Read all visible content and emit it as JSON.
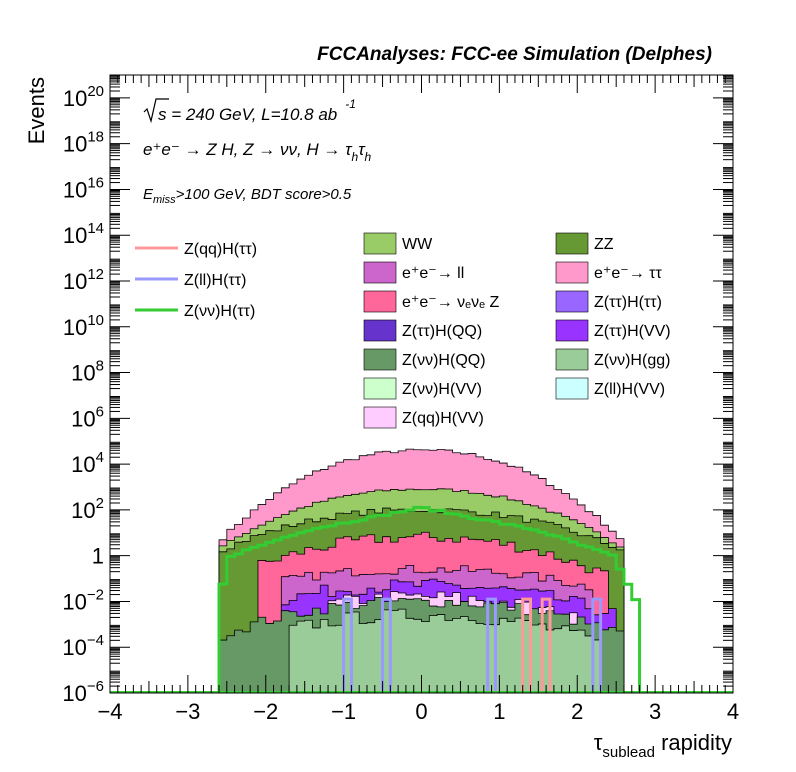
{
  "header": {
    "title": "FCCAnalyses: FCC-ee Simulation (Delphes)"
  },
  "annotations": {
    "energy_prefix": "s",
    "energy": " = 240 GeV, L=10.8 ab",
    "lumi_exp": "-1",
    "process": "e⁺e⁻ → Z H, Z → νν, H → τ",
    "process_sub": "h",
    "process_tail": "τ",
    "process_sub2": "h",
    "cut_prefix": "E",
    "cut_sub": "miss",
    "cut_text": ">100 GeV, BDT score>0.5"
  },
  "axes": {
    "ylabel": "Events",
    "xlabel_main": "τ",
    "xlabel_sub": "sublead",
    "xlabel_tail": " rapidity"
  },
  "colors": {
    "WW": "#99cc66",
    "ZZ": "#669933",
    "ee_ll": "#cc66cc",
    "ee_tautau": "#ff99cc",
    "ee_nunuZ": "#ff6699",
    "Ztt_Htt": "#9966ff",
    "Ztt_HQQ": "#6633cc",
    "Ztt_HVV": "#9933ff",
    "Znn_HQQ": "#669966",
    "Znn_Hgg": "#99cc99",
    "Znn_HVV": "#ccffcc",
    "Zll_HVV": "#ccffff",
    "Zqq_HVV": "#ffccff",
    "sig_qq": "#ff9999",
    "sig_ll": "#9999ff",
    "sig_nn": "#33cc33"
  },
  "chart_data": {
    "type": "histogram-stack",
    "title": "FCCAnalyses: FCC-ee Simulation (Delphes)",
    "xlabel": "τ_sublead rapidity",
    "ylabel": "Events",
    "xlim": [
      -4,
      4
    ],
    "ylim": [
      1e-06,
      1e+21
    ],
    "y_scale": "log",
    "x_ticks": [
      "−4",
      "−3",
      "−2",
      "−1",
      "0",
      "1",
      "2",
      "3",
      "4"
    ],
    "y_ticks": [
      {
        "base": "10",
        "exp": "−6",
        "value": 1e-06
      },
      {
        "base": "10",
        "exp": "−4",
        "value": 0.0001
      },
      {
        "base": "10",
        "exp": "−2",
        "value": 0.01
      },
      {
        "base": "1",
        "exp": "",
        "value": 1
      },
      {
        "base": "10",
        "exp": "2",
        "value": 100.0
      },
      {
        "base": "10",
        "exp": "4",
        "value": 10000.0
      },
      {
        "base": "10",
        "exp": "6",
        "value": 1000000.0
      },
      {
        "base": "10",
        "exp": "8",
        "value": 100000000.0
      },
      {
        "base": "10",
        "exp": "10",
        "value": 10000000000.0
      },
      {
        "base": "10",
        "exp": "12",
        "value": 1000000000000.0
      },
      {
        "base": "10",
        "exp": "14",
        "value": 100000000000000.0
      },
      {
        "base": "10",
        "exp": "16",
        "value": 1e+16
      },
      {
        "base": "10",
        "exp": "18",
        "value": 1e+18
      },
      {
        "base": "10",
        "exp": "20",
        "value": 1e+20
      }
    ],
    "binning": {
      "range": [
        -4,
        4
      ],
      "bins": 80
    },
    "stack_approx_log10_top": [
      {
        "x": -2.6,
        "ZZ": 0.5,
        "WW": 0.5,
        "ee_tautau": 0.5
      },
      {
        "x": -2.0,
        "ZZ": 1.3,
        "WW": 2.2,
        "ee_tautau": 3.1
      },
      {
        "x": -1.0,
        "ZZ": 1.8,
        "WW": 2.5,
        "ee_tautau": 4.5
      },
      {
        "x": 0.0,
        "ZZ": 2.0,
        "WW": 2.7,
        "ee_tautau": 4.4
      },
      {
        "x": 1.0,
        "ZZ": 1.8,
        "WW": 2.5,
        "ee_tautau": 4.5
      },
      {
        "x": 2.0,
        "ZZ": 1.3,
        "WW": 2.2,
        "ee_tautau": 3.1
      },
      {
        "x": 2.6,
        "ZZ": 0.5,
        "WW": 0.5,
        "ee_tautau": 0.5
      }
    ],
    "signal_nunu_approx_log10": [
      {
        "x": -2.6,
        "y": -1.9
      },
      {
        "x": -2.45,
        "y": 0.0
      },
      {
        "x": -1.5,
        "y": 1.1
      },
      {
        "x": 0.0,
        "y": 2.1
      },
      {
        "x": 1.5,
        "y": 1.1
      },
      {
        "x": 2.45,
        "y": 0.0
      },
      {
        "x": 2.75,
        "y": -1.9
      }
    ],
    "legend": {
      "left": [
        {
          "label": "Z(qq)H(ττ)",
          "key": "sig_qq",
          "style": "line"
        },
        {
          "label": "Z(ll)H(ττ)",
          "key": "sig_ll",
          "style": "line"
        },
        {
          "label": "Z(νν)H(ττ)",
          "key": "sig_nn",
          "style": "line"
        }
      ],
      "col1": [
        {
          "label": "WW",
          "key": "WW"
        },
        {
          "label": "e⁺e⁻→ ll",
          "key": "ee_ll"
        },
        {
          "label": "e⁺e⁻→ νₑνₑ Z",
          "key": "ee_nunuZ"
        },
        {
          "label": "Z(ττ)H(QQ)",
          "key": "Ztt_HQQ"
        },
        {
          "label": "Z(νν)H(QQ)",
          "key": "Znn_HQQ"
        },
        {
          "label": "Z(νν)H(VV)",
          "key": "Znn_HVV"
        },
        {
          "label": "Z(qq)H(VV)",
          "key": "Zqq_HVV"
        }
      ],
      "col2": [
        {
          "label": "ZZ",
          "key": "ZZ"
        },
        {
          "label": "e⁺e⁻→ ττ",
          "key": "ee_tautau"
        },
        {
          "label": "Z(ττ)H(ττ)",
          "key": "Ztt_Htt"
        },
        {
          "label": "Z(ττ)H(VV)",
          "key": "Ztt_HVV"
        },
        {
          "label": "Z(νν)H(gg)",
          "key": "Znn_Hgg"
        },
        {
          "label": "Z(ll)H(VV)",
          "key": "Zll_HVV"
        }
      ]
    }
  }
}
